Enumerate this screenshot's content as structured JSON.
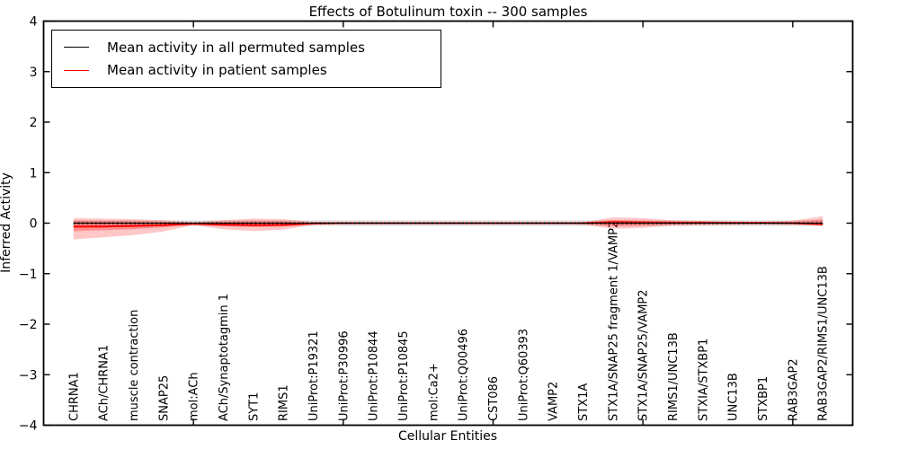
{
  "page": {
    "background": "#ffffff"
  },
  "legend": {
    "entries": [
      {
        "label": "Mean activity in all permuted samples",
        "color": "#000000"
      },
      {
        "label": "Mean activity in patient samples",
        "color": "#ff0000"
      }
    ]
  },
  "chart_data": {
    "type": "line",
    "title": "Effects of Botulinum toxin -- 300 samples",
    "xlabel": "Cellular Entities",
    "ylabel": "Inferred Activity",
    "ylim": [
      -4,
      4
    ],
    "yticks": [
      4,
      3,
      2,
      1,
      0,
      -1,
      -2,
      -3,
      -4
    ],
    "ytick_labels": [
      "4",
      "3",
      "2",
      "1",
      "0",
      "−1",
      "−2",
      "−3",
      "−4"
    ],
    "x_major_tick_indices": [
      4,
      9,
      14,
      19,
      24
    ],
    "grid": false,
    "legend_position": "upper left",
    "categories": [
      "CHRNA1",
      "ACh/CHRNA1",
      "muscle contraction",
      "SNAP25",
      "mol:ACh",
      "ACh/Synaptotagmin 1",
      "SYT1",
      "RIMS1",
      "UniProt:P19321",
      "UniProt:P30996",
      "UniProt:P10844",
      "UniProt:P10845",
      "mol:Ca2+",
      "UniProt:Q00496",
      "CST086",
      "UniProt:Q60393",
      "VAMP2",
      "STX1A",
      "STX1A/SNAP25 fragment 1/VAMP2",
      "STX1A/SNAP25/VAMP2",
      "RIMS1/UNC13B",
      "STXIA/STXBP1",
      "UNC13B",
      "STXBP1",
      "RAB3GAP2",
      "RAB3GAP2/RIMS1/UNC13B"
    ],
    "series": [
      {
        "name": "Mean activity in all permuted samples",
        "color": "#000000",
        "line_style": "dotted",
        "values": [
          0,
          0,
          0,
          0,
          0,
          0,
          0,
          0,
          0,
          0,
          0,
          0,
          0,
          0,
          0,
          0,
          0,
          0,
          0,
          0,
          0,
          0,
          0,
          0,
          0,
          0
        ]
      },
      {
        "name": "Mean activity in patient samples",
        "color": "#ff0000",
        "line_style": "solid",
        "values": [
          -0.07,
          -0.065,
          -0.055,
          -0.04,
          -0.01,
          -0.03,
          -0.04,
          -0.035,
          -0.005,
          0,
          0,
          0,
          0,
          0,
          0,
          0,
          0,
          0,
          0.02,
          0.015,
          0.01,
          0.01,
          0.005,
          0.005,
          0,
          -0.02
        ]
      }
    ],
    "bands": [
      {
        "name": "patient-samples-outer-band",
        "color": "#ff0000",
        "opacity": 0.22,
        "hi": [
          0.1,
          0.09,
          0.08,
          0.055,
          0.02,
          0.06,
          0.09,
          0.08,
          0.025,
          0.012,
          0.01,
          0.01,
          0.01,
          0.01,
          0.01,
          0.01,
          0.012,
          0.02,
          0.115,
          0.1,
          0.055,
          0.045,
          0.035,
          0.03,
          0.05,
          0.135
        ],
        "lo": [
          -0.32,
          -0.28,
          -0.235,
          -0.165,
          -0.04,
          -0.12,
          -0.155,
          -0.13,
          -0.035,
          -0.015,
          -0.012,
          -0.012,
          -0.012,
          -0.012,
          -0.012,
          -0.012,
          -0.015,
          -0.025,
          -0.11,
          -0.095,
          -0.05,
          -0.04,
          -0.03,
          -0.025,
          -0.03,
          -0.055
        ]
      },
      {
        "name": "patient-samples-inner-band",
        "color": "#ff0000",
        "opacity": 0.27,
        "hi": [
          0.05,
          0.045,
          0.04,
          0.028,
          0.01,
          0.03,
          0.045,
          0.04,
          0.012,
          0.006,
          0.005,
          0.005,
          0.005,
          0.005,
          0.005,
          0.005,
          0.006,
          0.01,
          0.06,
          0.05,
          0.028,
          0.022,
          0.018,
          0.015,
          0.025,
          0.075
        ],
        "lo": [
          -0.16,
          -0.14,
          -0.117,
          -0.082,
          -0.02,
          -0.06,
          -0.078,
          -0.065,
          -0.017,
          -0.008,
          -0.006,
          -0.006,
          -0.006,
          -0.006,
          -0.006,
          -0.006,
          -0.008,
          -0.012,
          -0.055,
          -0.047,
          -0.025,
          -0.02,
          -0.015,
          -0.012,
          -0.015,
          -0.035
        ]
      },
      {
        "name": "permuted-samples-band",
        "color": "#999999",
        "opacity": 0.3,
        "half_width": 0.055
      }
    ]
  }
}
